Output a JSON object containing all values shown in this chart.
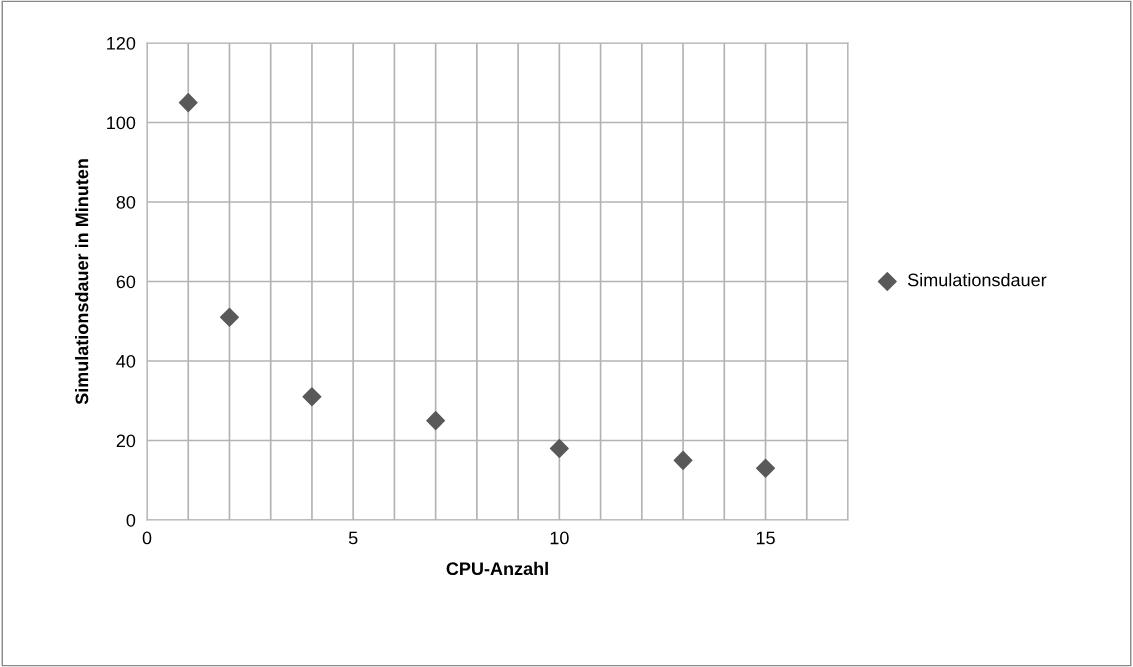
{
  "chart_data": {
    "type": "scatter",
    "xlabel": "CPU-Anzahl",
    "ylabel": "Simulationsdauer in Minuten",
    "x": [
      1,
      2,
      4,
      7,
      10,
      13,
      15
    ],
    "series": [
      {
        "name": "Simulationsdauer",
        "color": "#595959",
        "values": [
          105,
          51,
          31,
          25,
          18,
          15,
          13
        ]
      }
    ],
    "xlim": [
      0,
      17
    ],
    "xticks": [
      0,
      {
        "value": 1,
        "label": null
      },
      {
        "value": 2,
        "label": null
      },
      {
        "value": 3,
        "label": null
      },
      {
        "value": 4,
        "label": null
      },
      5,
      {
        "value": 6,
        "label": null
      },
      {
        "value": 7,
        "label": null
      },
      {
        "value": 8,
        "label": null
      },
      {
        "value": 9,
        "label": null
      },
      10,
      {
        "value": 11,
        "label": null
      },
      {
        "value": 12,
        "label": null
      },
      {
        "value": 13,
        "label": null
      },
      {
        "value": 14,
        "label": null
      },
      15,
      {
        "value": 16,
        "label": null
      },
      {
        "value": 17,
        "label": null
      }
    ],
    "ylim": [
      0,
      120
    ],
    "yticks": [
      0,
      20,
      40,
      60,
      80,
      100,
      120
    ],
    "grid": true,
    "legend": "right",
    "marker": "diamond"
  }
}
